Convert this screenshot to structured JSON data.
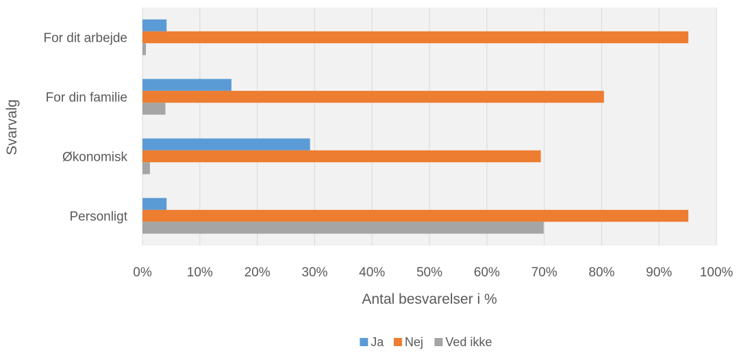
{
  "chart_data": {
    "type": "bar",
    "orientation": "horizontal",
    "title": "",
    "xlabel": "Antal besvarelser i %",
    "ylabel": "Svarvalg",
    "categories": [
      "For dit arbejde",
      "For din familie",
      "Økonomisk",
      "Personligt"
    ],
    "series": [
      {
        "name": "Ja",
        "color": "#5B9BD5",
        "values": [
          4.2,
          15.5,
          29.2,
          4.2
        ]
      },
      {
        "name": "Nej",
        "color": "#ED7D31",
        "values": [
          95.1,
          80.4,
          69.4,
          95.1
        ]
      },
      {
        "name": "Ved ikke",
        "color": "#A5A5A5",
        "values": [
          0.6,
          4.0,
          1.3,
          69.9
        ]
      }
    ],
    "xlim": [
      0,
      100
    ],
    "x_ticks": [
      "0%",
      "10%",
      "20%",
      "30%",
      "40%",
      "50%",
      "60%",
      "70%",
      "80%",
      "90%",
      "100%"
    ],
    "grid": true,
    "plot_background": "#F2F2F2",
    "legend_position": "bottom"
  }
}
